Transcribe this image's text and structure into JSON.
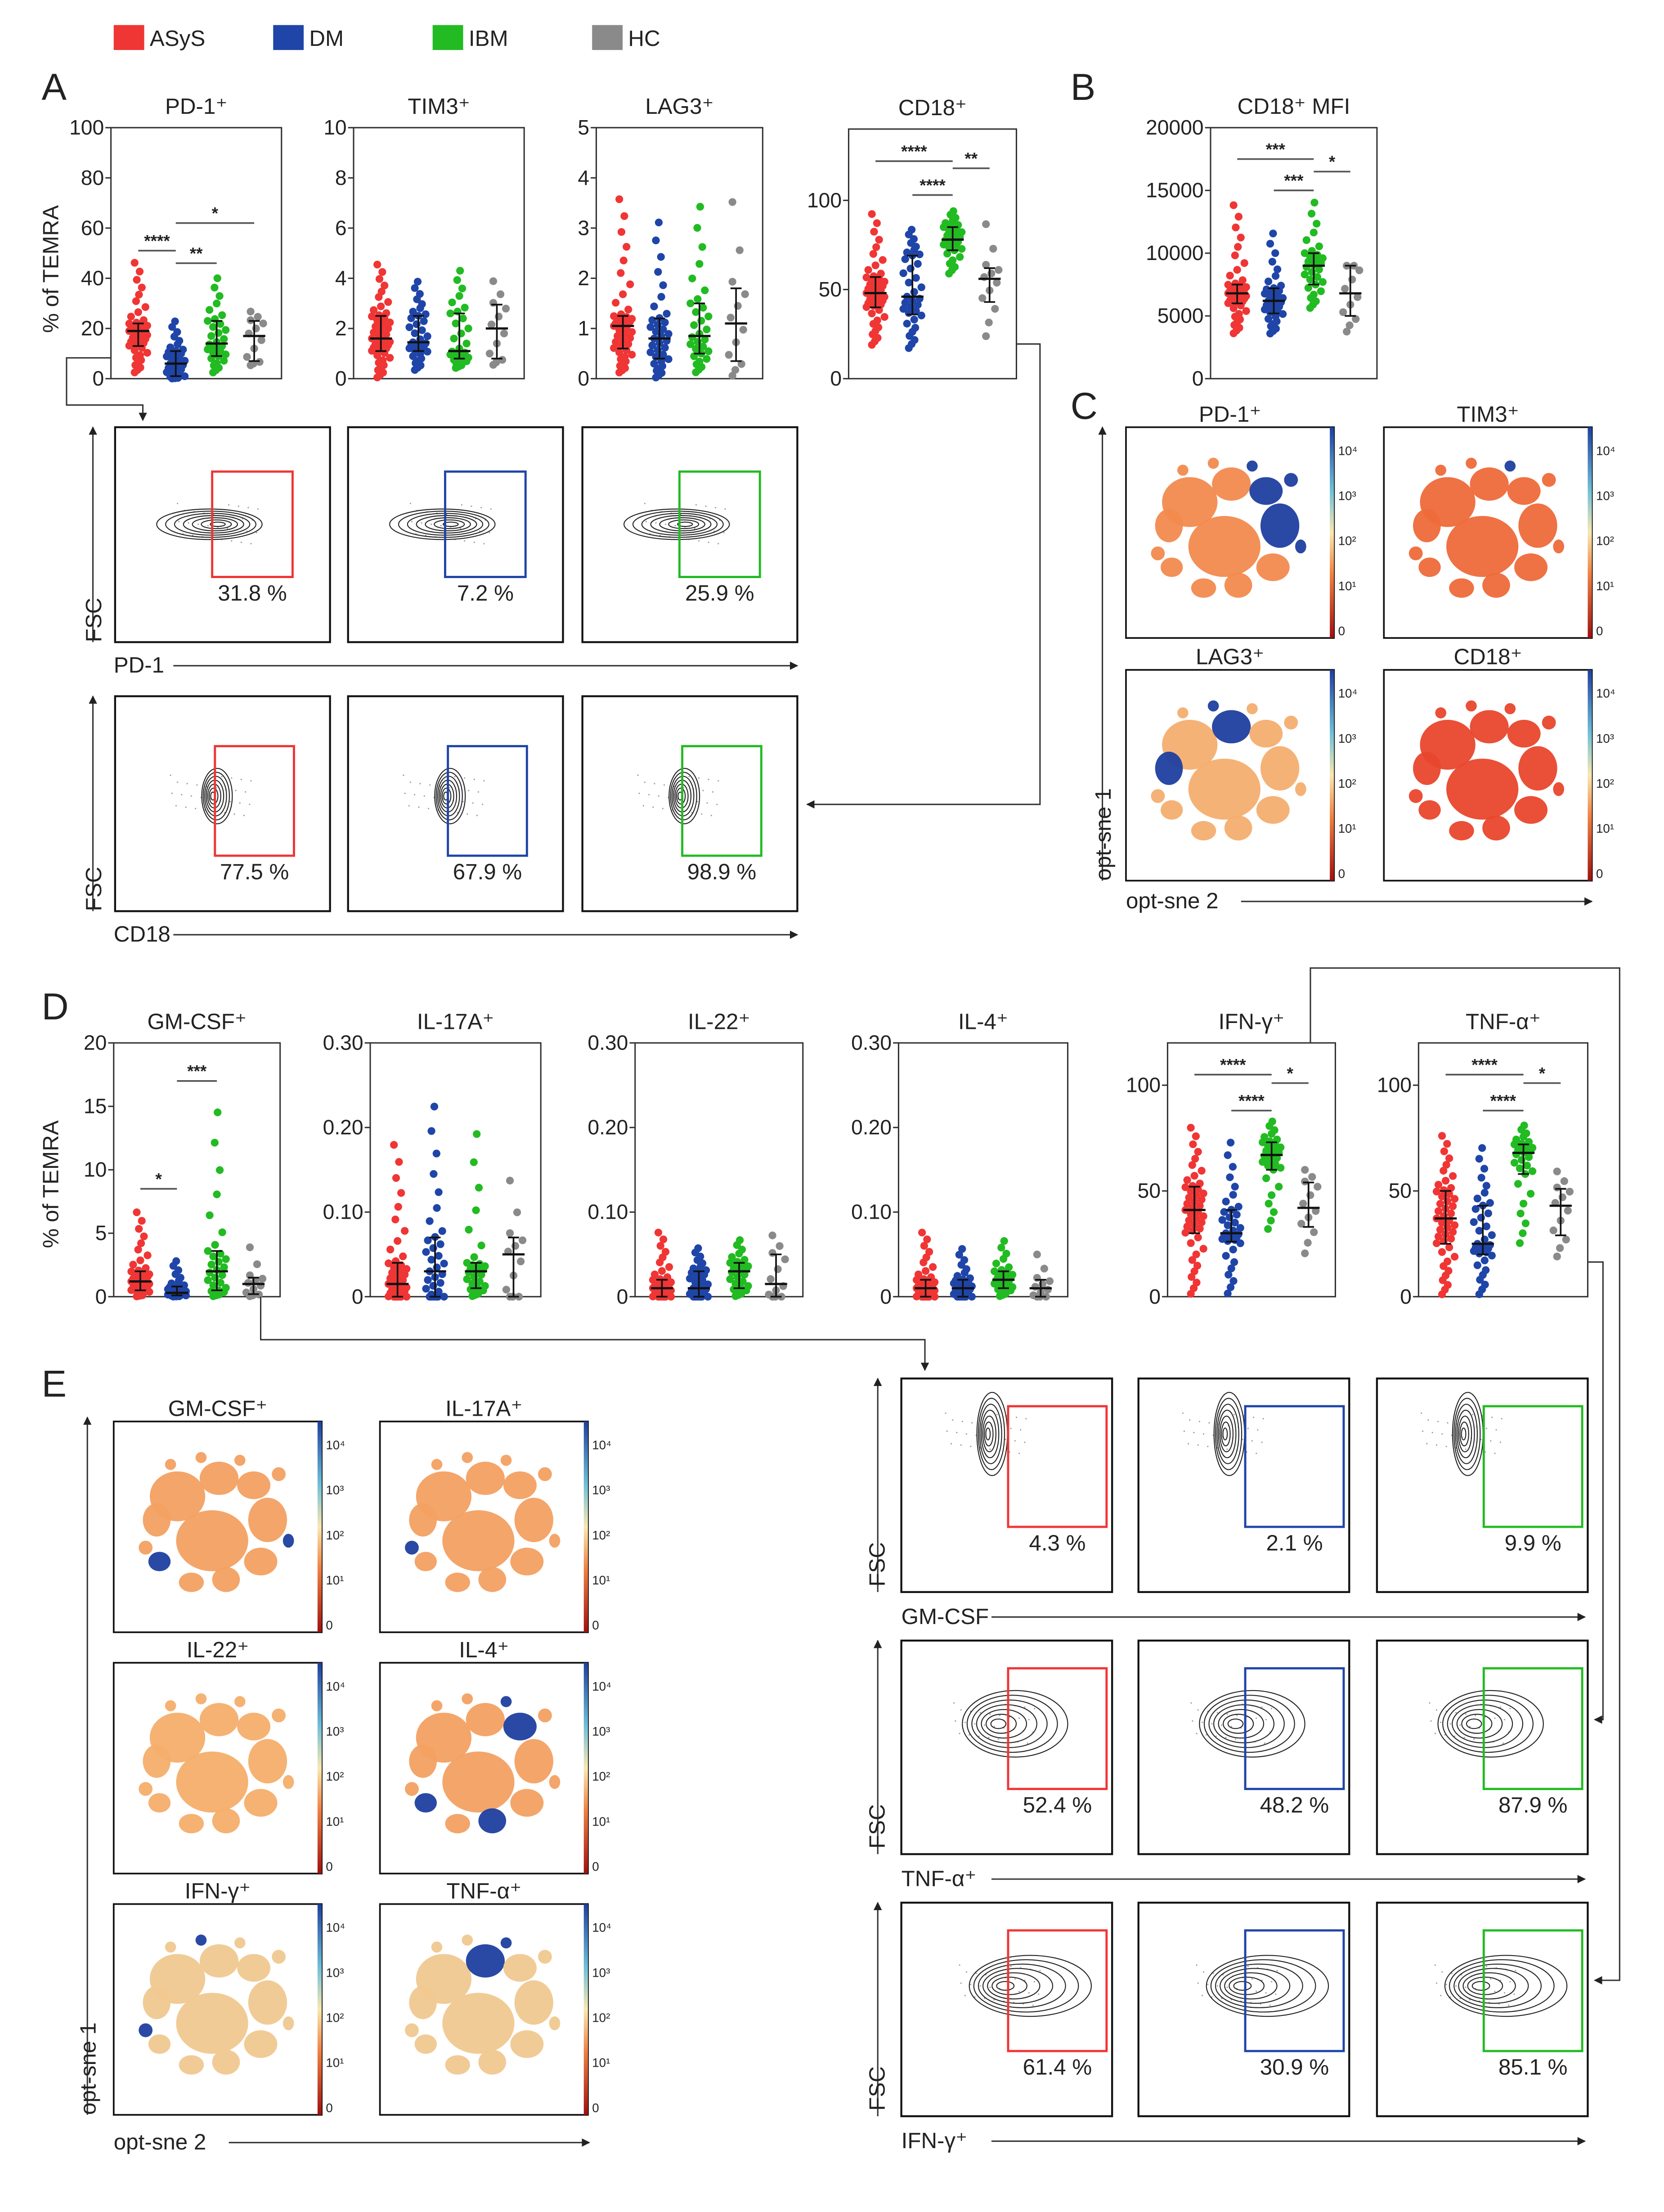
{
  "legend": [
    {
      "label": "ASyS",
      "color": "#f03535"
    },
    {
      "label": "DM",
      "color": "#1f45a8"
    },
    {
      "label": "IBM",
      "color": "#22bb22"
    },
    {
      "label": "HC",
      "color": "#8a8a8a"
    }
  ],
  "panel_letters": {
    "A": "A",
    "B": "B",
    "C": "C",
    "D": "D",
    "E": "E"
  },
  "y_label": "% of TEMRA",
  "chart_data": [
    {
      "id": "pd1",
      "type": "scatter",
      "title": "PD-1⁺",
      "ylim": [
        0,
        100
      ],
      "ticks": [
        "0",
        "20",
        "40",
        "60",
        "80",
        "100"
      ],
      "tick_values": [
        0,
        20,
        40,
        60,
        80,
        100
      ],
      "groups": [
        {
          "name": "ASyS",
          "median": 19,
          "ci": [
            13,
            22
          ],
          "range": [
            2,
            48
          ],
          "n": 45
        },
        {
          "name": "DM",
          "median": 6,
          "ci": [
            1,
            11
          ],
          "range": [
            0,
            24
          ],
          "n": 35
        },
        {
          "name": "IBM",
          "median": 14,
          "ci": [
            9,
            23
          ],
          "range": [
            2,
            42
          ],
          "n": 30
        },
        {
          "name": "HC",
          "median": 17,
          "ci": [
            7,
            23
          ],
          "range": [
            5,
            28
          ],
          "n": 12
        }
      ],
      "significance": [
        {
          "from": 0,
          "to": 1,
          "label": "****",
          "y": 51
        },
        {
          "from": 1,
          "to": 2,
          "label": "**",
          "y": 46
        },
        {
          "from": 1,
          "to": 3,
          "label": "*",
          "y": 62
        }
      ]
    },
    {
      "id": "tim3",
      "type": "scatter",
      "title": "TIM3⁺",
      "ylim": [
        0,
        10
      ],
      "ticks": [
        "0",
        "2",
        "4",
        "6",
        "8",
        "10"
      ],
      "tick_values": [
        0,
        2,
        4,
        6,
        8,
        10
      ],
      "groups": [
        {
          "name": "ASyS",
          "median": 1.6,
          "ci": [
            1.1,
            2.5
          ],
          "range": [
            0,
            4.7
          ],
          "n": 45
        },
        {
          "name": "DM",
          "median": 1.45,
          "ci": [
            1.1,
            2.5
          ],
          "range": [
            0.3,
            4.0
          ],
          "n": 35
        },
        {
          "name": "IBM",
          "median": 1.1,
          "ci": [
            0.8,
            2.6
          ],
          "range": [
            0.4,
            4.5
          ],
          "n": 30
        },
        {
          "name": "HC",
          "median": 2.0,
          "ci": [
            0.8,
            2.95
          ],
          "range": [
            0.5,
            4.2
          ],
          "n": 12
        }
      ],
      "significance": []
    },
    {
      "id": "lag3",
      "type": "scatter",
      "title": "LAG3⁺",
      "ylim": [
        0,
        5
      ],
      "ticks": [
        "0",
        "1",
        "2",
        "3",
        "4",
        "5"
      ],
      "tick_values": [
        0,
        1,
        2,
        3,
        4,
        5
      ],
      "groups": [
        {
          "name": "ASyS",
          "median": 1.05,
          "ci": [
            0.6,
            1.25
          ],
          "range": [
            0.1,
            3.75
          ],
          "n": 45
        },
        {
          "name": "DM",
          "median": 0.8,
          "ci": [
            0.4,
            1.2
          ],
          "range": [
            0,
            3.3
          ],
          "n": 35
        },
        {
          "name": "IBM",
          "median": 0.85,
          "ci": [
            0.5,
            1.5
          ],
          "range": [
            0.1,
            3.65
          ],
          "n": 30
        },
        {
          "name": "HC",
          "median": 1.1,
          "ci": [
            0.35,
            1.8
          ],
          "range": [
            0,
            4.1
          ],
          "n": 12
        }
      ],
      "significance": []
    },
    {
      "id": "cd18",
      "type": "scatter",
      "title": "CD18⁺",
      "ylim": [
        0,
        140
      ],
      "ticks": [
        "0",
        "50",
        "100"
      ],
      "tick_values": [
        0,
        50,
        100
      ],
      "groups": [
        {
          "name": "ASyS",
          "median": 48,
          "ci": [
            40,
            57
          ],
          "range": [
            18,
            95
          ],
          "n": 45
        },
        {
          "name": "DM",
          "median": 46,
          "ci": [
            36,
            69
          ],
          "range": [
            16,
            85
          ],
          "n": 35
        },
        {
          "name": "IBM",
          "median": 78,
          "ci": [
            72,
            85
          ],
          "range": [
            58,
            95
          ],
          "n": 30
        },
        {
          "name": "HC",
          "median": 56,
          "ci": [
            43,
            62
          ],
          "range": [
            20,
            95
          ],
          "n": 12
        }
      ],
      "significance": [
        {
          "from": 0,
          "to": 2,
          "label": "****",
          "y": 122
        },
        {
          "from": 2,
          "to": 3,
          "label": "**",
          "y": 118
        },
        {
          "from": 1,
          "to": 2,
          "label": "****",
          "y": 103
        }
      ]
    },
    {
      "id": "cd18mfi",
      "type": "scatter",
      "title": "CD18⁺ MFI",
      "ylim": [
        0,
        20000
      ],
      "ticks": [
        "0",
        "5000",
        "10000",
        "15000",
        "20000"
      ],
      "tick_values": [
        0,
        5000,
        10000,
        15000,
        20000
      ],
      "groups": [
        {
          "name": "ASyS",
          "median": 6800,
          "ci": [
            6000,
            7500
          ],
          "range": [
            3500,
            14300
          ],
          "n": 45
        },
        {
          "name": "DM",
          "median": 6200,
          "ci": [
            5200,
            7200
          ],
          "range": [
            3500,
            12000
          ],
          "n": 35
        },
        {
          "name": "IBM",
          "median": 9000,
          "ci": [
            7500,
            10000
          ],
          "range": [
            5500,
            14500
          ],
          "n": 30
        },
        {
          "name": "HC",
          "median": 6800,
          "ci": [
            5000,
            9000
          ],
          "range": [
            3500,
            9000
          ],
          "n": 12
        }
      ],
      "significance": [
        {
          "from": 0,
          "to": 2,
          "label": "***",
          "y": 17500
        },
        {
          "from": 2,
          "to": 3,
          "label": "*",
          "y": 16500
        },
        {
          "from": 1,
          "to": 2,
          "label": "***",
          "y": 15000
        }
      ]
    },
    {
      "id": "gmcsf",
      "type": "scatter",
      "title": "GM-CSF⁺",
      "ylim": [
        0,
        20
      ],
      "ticks": [
        "0",
        "5",
        "10",
        "15",
        "20"
      ],
      "tick_values": [
        0,
        5,
        10,
        15,
        20
      ],
      "groups": [
        {
          "name": "ASyS",
          "median": 1.2,
          "ci": [
            0.5,
            2.0
          ],
          "range": [
            0,
            7
          ],
          "n": 45
        },
        {
          "name": "DM",
          "median": 0.3,
          "ci": [
            0.1,
            0.8
          ],
          "range": [
            0,
            3
          ],
          "n": 35
        },
        {
          "name": "IBM",
          "median": 2.0,
          "ci": [
            0.5,
            3.6
          ],
          "range": [
            0,
            15.8
          ],
          "n": 30
        },
        {
          "name": "HC",
          "median": 1.0,
          "ci": [
            0.2,
            1.5
          ],
          "range": [
            0,
            4.7
          ],
          "n": 12
        }
      ],
      "significance": [
        {
          "from": 0,
          "to": 1,
          "label": "*",
          "y": 8.5
        },
        {
          "from": 1,
          "to": 2,
          "label": "***",
          "y": 17
        }
      ]
    },
    {
      "id": "il17a",
      "type": "scatter",
      "title": "IL-17A⁺",
      "ylim": [
        0,
        0.3
      ],
      "ticks": [
        "0",
        "0.10",
        "0.20",
        "0.30"
      ],
      "tick_values": [
        0,
        0.1,
        0.2,
        0.3
      ],
      "groups": [
        {
          "name": "ASyS",
          "median": 0.015,
          "ci": [
            0,
            0.04
          ],
          "range": [
            0,
            0.19
          ],
          "n": 45
        },
        {
          "name": "DM",
          "median": 0.03,
          "ci": [
            0,
            0.07
          ],
          "range": [
            0,
            0.24
          ],
          "n": 35
        },
        {
          "name": "IBM",
          "median": 0.03,
          "ci": [
            0.01,
            0.04
          ],
          "range": [
            0,
            0.21
          ],
          "n": 30
        },
        {
          "name": "HC",
          "median": 0.05,
          "ci": [
            0,
            0.07
          ],
          "range": [
            0,
            0.16
          ],
          "n": 12
        }
      ],
      "significance": []
    },
    {
      "id": "il22",
      "type": "scatter",
      "title": "IL-22⁺",
      "ylim": [
        0,
        0.3
      ],
      "ticks": [
        "0",
        "0.10",
        "0.20",
        "0.30"
      ],
      "tick_values": [
        0,
        0.1,
        0.2,
        0.3
      ],
      "groups": [
        {
          "name": "ASyS",
          "median": 0.01,
          "ci": [
            0,
            0.02
          ],
          "range": [
            0,
            0.08
          ],
          "n": 45
        },
        {
          "name": "DM",
          "median": 0.01,
          "ci": [
            0,
            0.03
          ],
          "range": [
            0,
            0.06
          ],
          "n": 35
        },
        {
          "name": "IBM",
          "median": 0.03,
          "ci": [
            0.01,
            0.04
          ],
          "range": [
            0,
            0.07
          ],
          "n": 30
        },
        {
          "name": "HC",
          "median": 0.015,
          "ci": [
            0,
            0.05
          ],
          "range": [
            0,
            0.08
          ],
          "n": 12
        }
      ],
      "significance": []
    },
    {
      "id": "il4",
      "type": "scatter",
      "title": "IL-4⁺",
      "ylim": [
        0,
        0.3
      ],
      "ticks": [
        "0",
        "0.10",
        "0.20",
        "0.30"
      ],
      "tick_values": [
        0,
        0.1,
        0.2,
        0.3
      ],
      "groups": [
        {
          "name": "ASyS",
          "median": 0.01,
          "ci": [
            0,
            0.02
          ],
          "range": [
            0,
            0.08
          ],
          "n": 45
        },
        {
          "name": "DM",
          "median": 0.01,
          "ci": [
            0,
            0.02
          ],
          "range": [
            0,
            0.06
          ],
          "n": 35
        },
        {
          "name": "IBM",
          "median": 0.02,
          "ci": [
            0.01,
            0.03
          ],
          "range": [
            0,
            0.07
          ],
          "n": 30
        },
        {
          "name": "HC",
          "median": 0.01,
          "ci": [
            0,
            0.02
          ],
          "range": [
            0,
            0.06
          ],
          "n": 12
        }
      ],
      "significance": []
    },
    {
      "id": "ifng",
      "type": "scatter",
      "title": "IFN-γ⁺",
      "ylim": [
        0,
        120
      ],
      "ticks": [
        "0",
        "50",
        "100"
      ],
      "tick_values": [
        0,
        50,
        100
      ],
      "groups": [
        {
          "name": "ASyS",
          "median": 41,
          "ci": [
            30,
            52
          ],
          "range": [
            0,
            82
          ],
          "n": 45
        },
        {
          "name": "DM",
          "median": 30,
          "ci": [
            26,
            41
          ],
          "range": [
            0,
            76
          ],
          "n": 35
        },
        {
          "name": "IBM",
          "median": 67,
          "ci": [
            60,
            73
          ],
          "range": [
            30,
            84
          ],
          "n": 30
        },
        {
          "name": "HC",
          "median": 42,
          "ci": [
            33,
            54
          ],
          "range": [
            18,
            62
          ],
          "n": 12
        }
      ],
      "significance": [
        {
          "from": 0,
          "to": 2,
          "label": "****",
          "y": 105
        },
        {
          "from": 2,
          "to": 3,
          "label": "*",
          "y": 101
        },
        {
          "from": 1,
          "to": 2,
          "label": "****",
          "y": 88
        }
      ]
    },
    {
      "id": "tnfa",
      "type": "scatter",
      "title": "TNF-α⁺",
      "ylim": [
        0,
        120
      ],
      "ticks": [
        "0",
        "50",
        "100"
      ],
      "tick_values": [
        0,
        50,
        100
      ],
      "groups": [
        {
          "name": "ASyS",
          "median": 37,
          "ci": [
            25,
            50
          ],
          "range": [
            0,
            78
          ],
          "n": 45
        },
        {
          "name": "DM",
          "median": 25,
          "ci": [
            20,
            43
          ],
          "range": [
            0,
            73
          ],
          "n": 35
        },
        {
          "name": "IBM",
          "median": 68,
          "ci": [
            58,
            72
          ],
          "range": [
            23,
            82
          ],
          "n": 30
        },
        {
          "name": "HC",
          "median": 43,
          "ci": [
            29,
            51
          ],
          "range": [
            17,
            62
          ],
          "n": 12
        }
      ],
      "significance": [
        {
          "from": 0,
          "to": 2,
          "label": "****",
          "y": 105
        },
        {
          "from": 2,
          "to": 3,
          "label": "*",
          "y": 101
        },
        {
          "from": 1,
          "to": 2,
          "label": "****",
          "y": 88
        }
      ]
    }
  ],
  "flow_a": {
    "y_axis": "FSC",
    "rows": [
      {
        "x_axis": "PD-1",
        "gates": [
          {
            "group": "ASyS",
            "percent": "31.8 %"
          },
          {
            "group": "DM",
            "percent": "7.2 %"
          },
          {
            "group": "IBM",
            "percent": "25.9 %"
          }
        ]
      },
      {
        "x_axis": "CD18",
        "gates": [
          {
            "group": "ASyS",
            "percent": "77.5 %"
          },
          {
            "group": "DM",
            "percent": "67.9 %"
          },
          {
            "group": "IBM",
            "percent": "98.9 %"
          }
        ]
      }
    ]
  },
  "flow_e": {
    "y_axis": "FSC",
    "rows": [
      {
        "x_axis": "GM-CSF",
        "gates": [
          {
            "group": "ASyS",
            "percent": "4.3 %"
          },
          {
            "group": "DM",
            "percent": "2.1 %"
          },
          {
            "group": "IBM",
            "percent": "9.9 %"
          }
        ]
      },
      {
        "x_axis": "TNF-α⁺",
        "gates": [
          {
            "group": "ASyS",
            "percent": "52.4 %"
          },
          {
            "group": "DM",
            "percent": "48.2 %"
          },
          {
            "group": "IBM",
            "percent": "87.9 %"
          }
        ]
      },
      {
        "x_axis": "IFN-γ⁺",
        "gates": [
          {
            "group": "ASyS",
            "percent": "61.4 %"
          },
          {
            "group": "DM",
            "percent": "30.9 %"
          },
          {
            "group": "IBM",
            "percent": "85.1 %"
          }
        ]
      }
    ]
  },
  "tsne_c": {
    "x_axis": "opt-sne 2",
    "y_axis": "opt-sne 1",
    "colorbar_ticks": [
      "10⁴",
      "10³",
      "10²",
      "10¹",
      "0"
    ],
    "maps": [
      {
        "title": "PD-1⁺",
        "base_color": "#f28a4e"
      },
      {
        "title": "TIM3⁺",
        "base_color": "#ee6a3a"
      },
      {
        "title": "LAG3⁺",
        "base_color": "#f4ae70"
      },
      {
        "title": "CD18⁺",
        "base_color": "#e8472c"
      }
    ]
  },
  "tsne_e": {
    "x_axis": "opt-sne 2",
    "y_axis": "opt-sne 1",
    "colorbar_ticks": [
      "10⁴",
      "10³",
      "10²",
      "10¹",
      "0"
    ],
    "maps": [
      {
        "title": "GM-CSF⁺",
        "base_color": "#f3a062"
      },
      {
        "title": "IL-17A⁺",
        "base_color": "#f3a062"
      },
      {
        "title": "IL-22⁺",
        "base_color": "#f4ae6c"
      },
      {
        "title": "IL-4⁺",
        "base_color": "#f3a062"
      },
      {
        "title": "IFN-γ⁺",
        "base_color": "#f0c890"
      },
      {
        "title": "TNF-α⁺",
        "base_color": "#f0c890"
      }
    ]
  }
}
